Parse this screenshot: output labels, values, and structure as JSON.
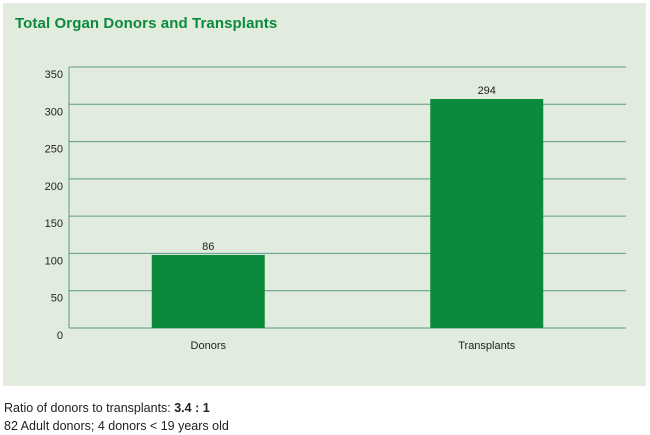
{
  "title": "Total Organ Donors and Transplants",
  "colors": {
    "bar": "#0a8a3a",
    "panel": "#e1ecdf",
    "grid": "#5a9a8a",
    "title": "#0a8a3a"
  },
  "chart_data": {
    "type": "bar",
    "title": "Total Organ Donors and Transplants",
    "categories": [
      "Donors",
      "Transplants"
    ],
    "values": [
      86,
      294
    ],
    "yticks": [
      350,
      300,
      250,
      200,
      150,
      100,
      50,
      0
    ],
    "ylim": [
      0,
      350
    ],
    "xlabel": "",
    "ylabel": "",
    "grid": true
  },
  "notes": {
    "ratio_label": "Ratio of donors to transplants: ",
    "ratio_value": "3.4 : 1",
    "detail": "82 Adult donors; 4 donors < 19 years old"
  }
}
